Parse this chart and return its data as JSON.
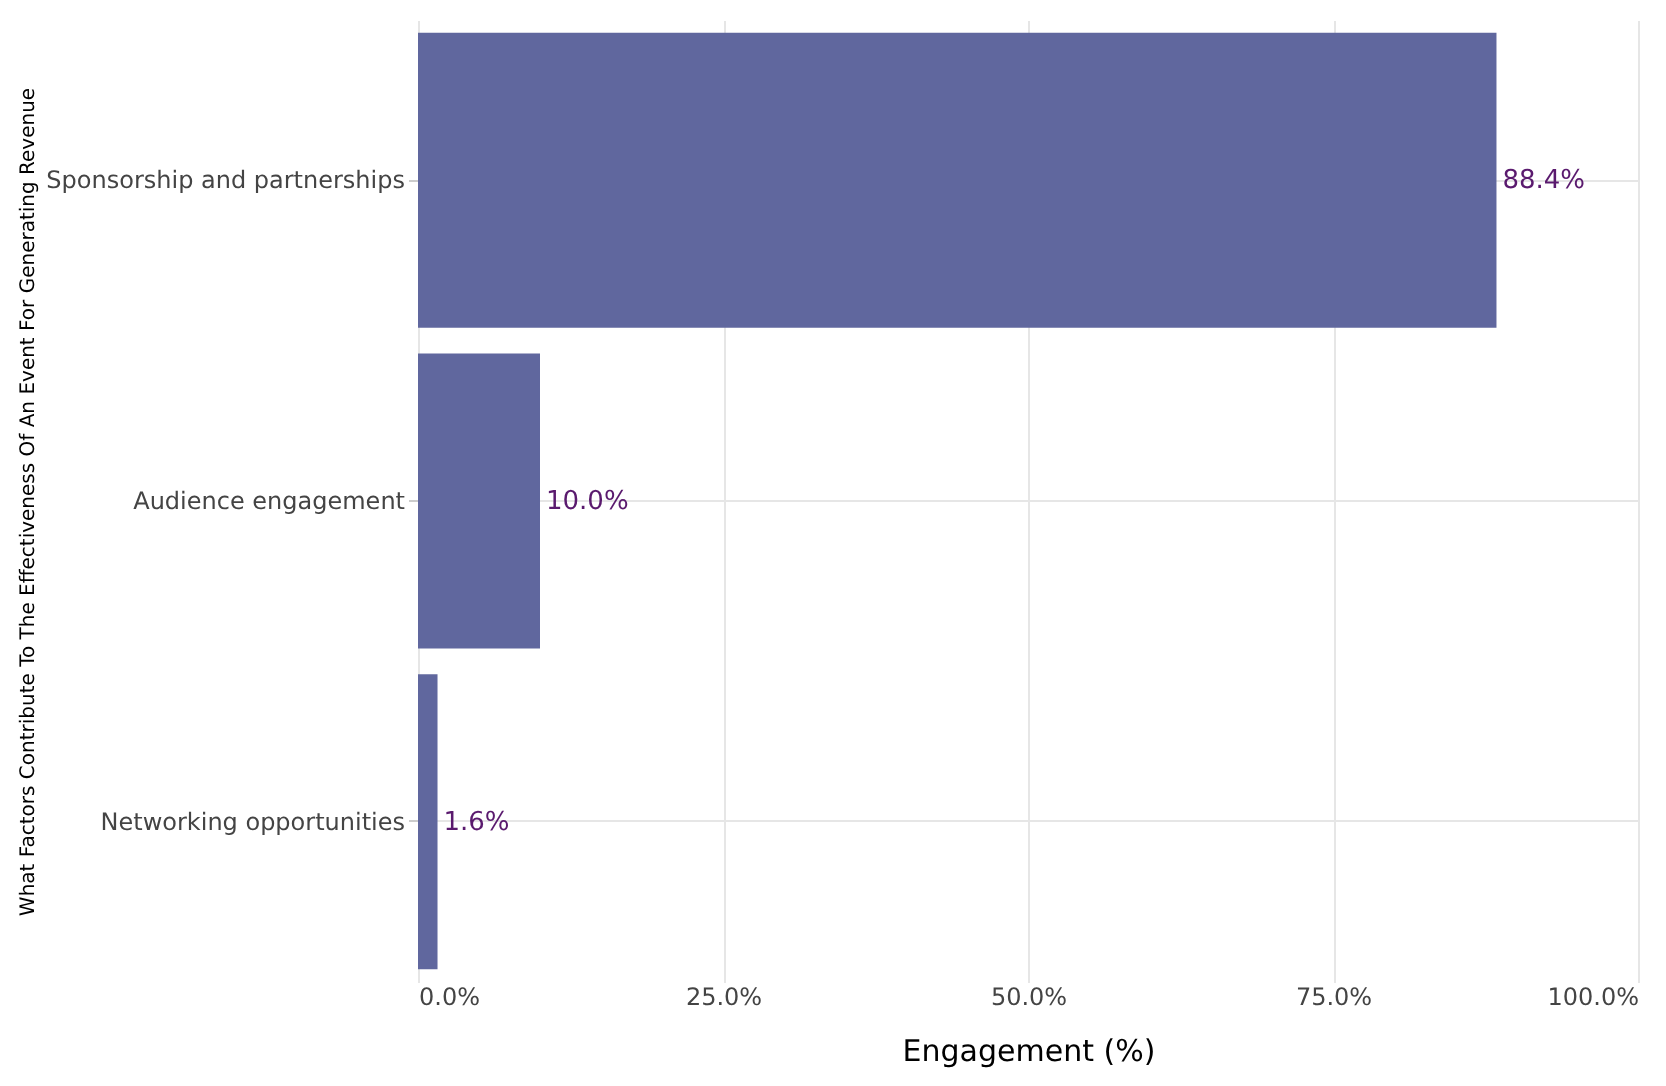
{
  "chart_data": {
    "type": "bar",
    "orientation": "horizontal",
    "xlabel": "Engagement (%)",
    "ylabel": "What Factors Contribute To The Effectiveness Of An Event For Generating Revenue",
    "categories": [
      "Sponsorship and partnerships",
      "Audience engagement",
      "Networking opportunities"
    ],
    "values": [
      88.4,
      10.0,
      1.6
    ],
    "color": "#60679e",
    "value_labels": [
      "88.4%",
      "10.0%",
      "1.6%"
    ],
    "xlim": [
      0,
      100
    ],
    "xticks": [
      {
        "value": 0,
        "label": "0.0%"
      },
      {
        "value": 25,
        "label": "25.0%"
      },
      {
        "value": 50,
        "label": "50.0%"
      },
      {
        "value": 75,
        "label": "75.0%"
      },
      {
        "value": 100,
        "label": "100.0%"
      }
    ],
    "grid": true
  }
}
